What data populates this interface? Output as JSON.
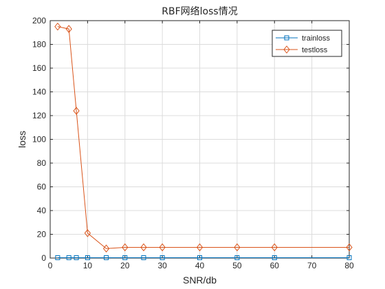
{
  "chart_data": {
    "type": "line",
    "title": "RBF网络loss情况",
    "xlabel": "SNR/db",
    "ylabel": "loss",
    "xlim": [
      0,
      80
    ],
    "ylim": [
      0,
      200
    ],
    "x_ticks": [
      0,
      10,
      20,
      30,
      40,
      50,
      60,
      70,
      80
    ],
    "y_ticks": [
      0,
      20,
      40,
      60,
      80,
      100,
      120,
      140,
      160,
      180,
      200
    ],
    "grid": true,
    "legend_position": "top-right",
    "series": [
      {
        "name": "trainloss",
        "color": "#0072BD",
        "marker": "square",
        "x": [
          2,
          5,
          7,
          10,
          15,
          20,
          25,
          30,
          40,
          50,
          60,
          80
        ],
        "y": [
          0.3,
          0.3,
          0.3,
          0.3,
          0.3,
          0.3,
          0.3,
          0.3,
          0.3,
          0.3,
          0.3,
          0.3
        ]
      },
      {
        "name": "testloss",
        "color": "#D95319",
        "marker": "diamond",
        "x": [
          2,
          5,
          7,
          10,
          15,
          20,
          25,
          30,
          40,
          50,
          60,
          80
        ],
        "y": [
          195,
          193,
          124,
          21,
          8,
          9,
          9,
          9,
          9,
          9,
          9,
          9
        ]
      }
    ]
  }
}
